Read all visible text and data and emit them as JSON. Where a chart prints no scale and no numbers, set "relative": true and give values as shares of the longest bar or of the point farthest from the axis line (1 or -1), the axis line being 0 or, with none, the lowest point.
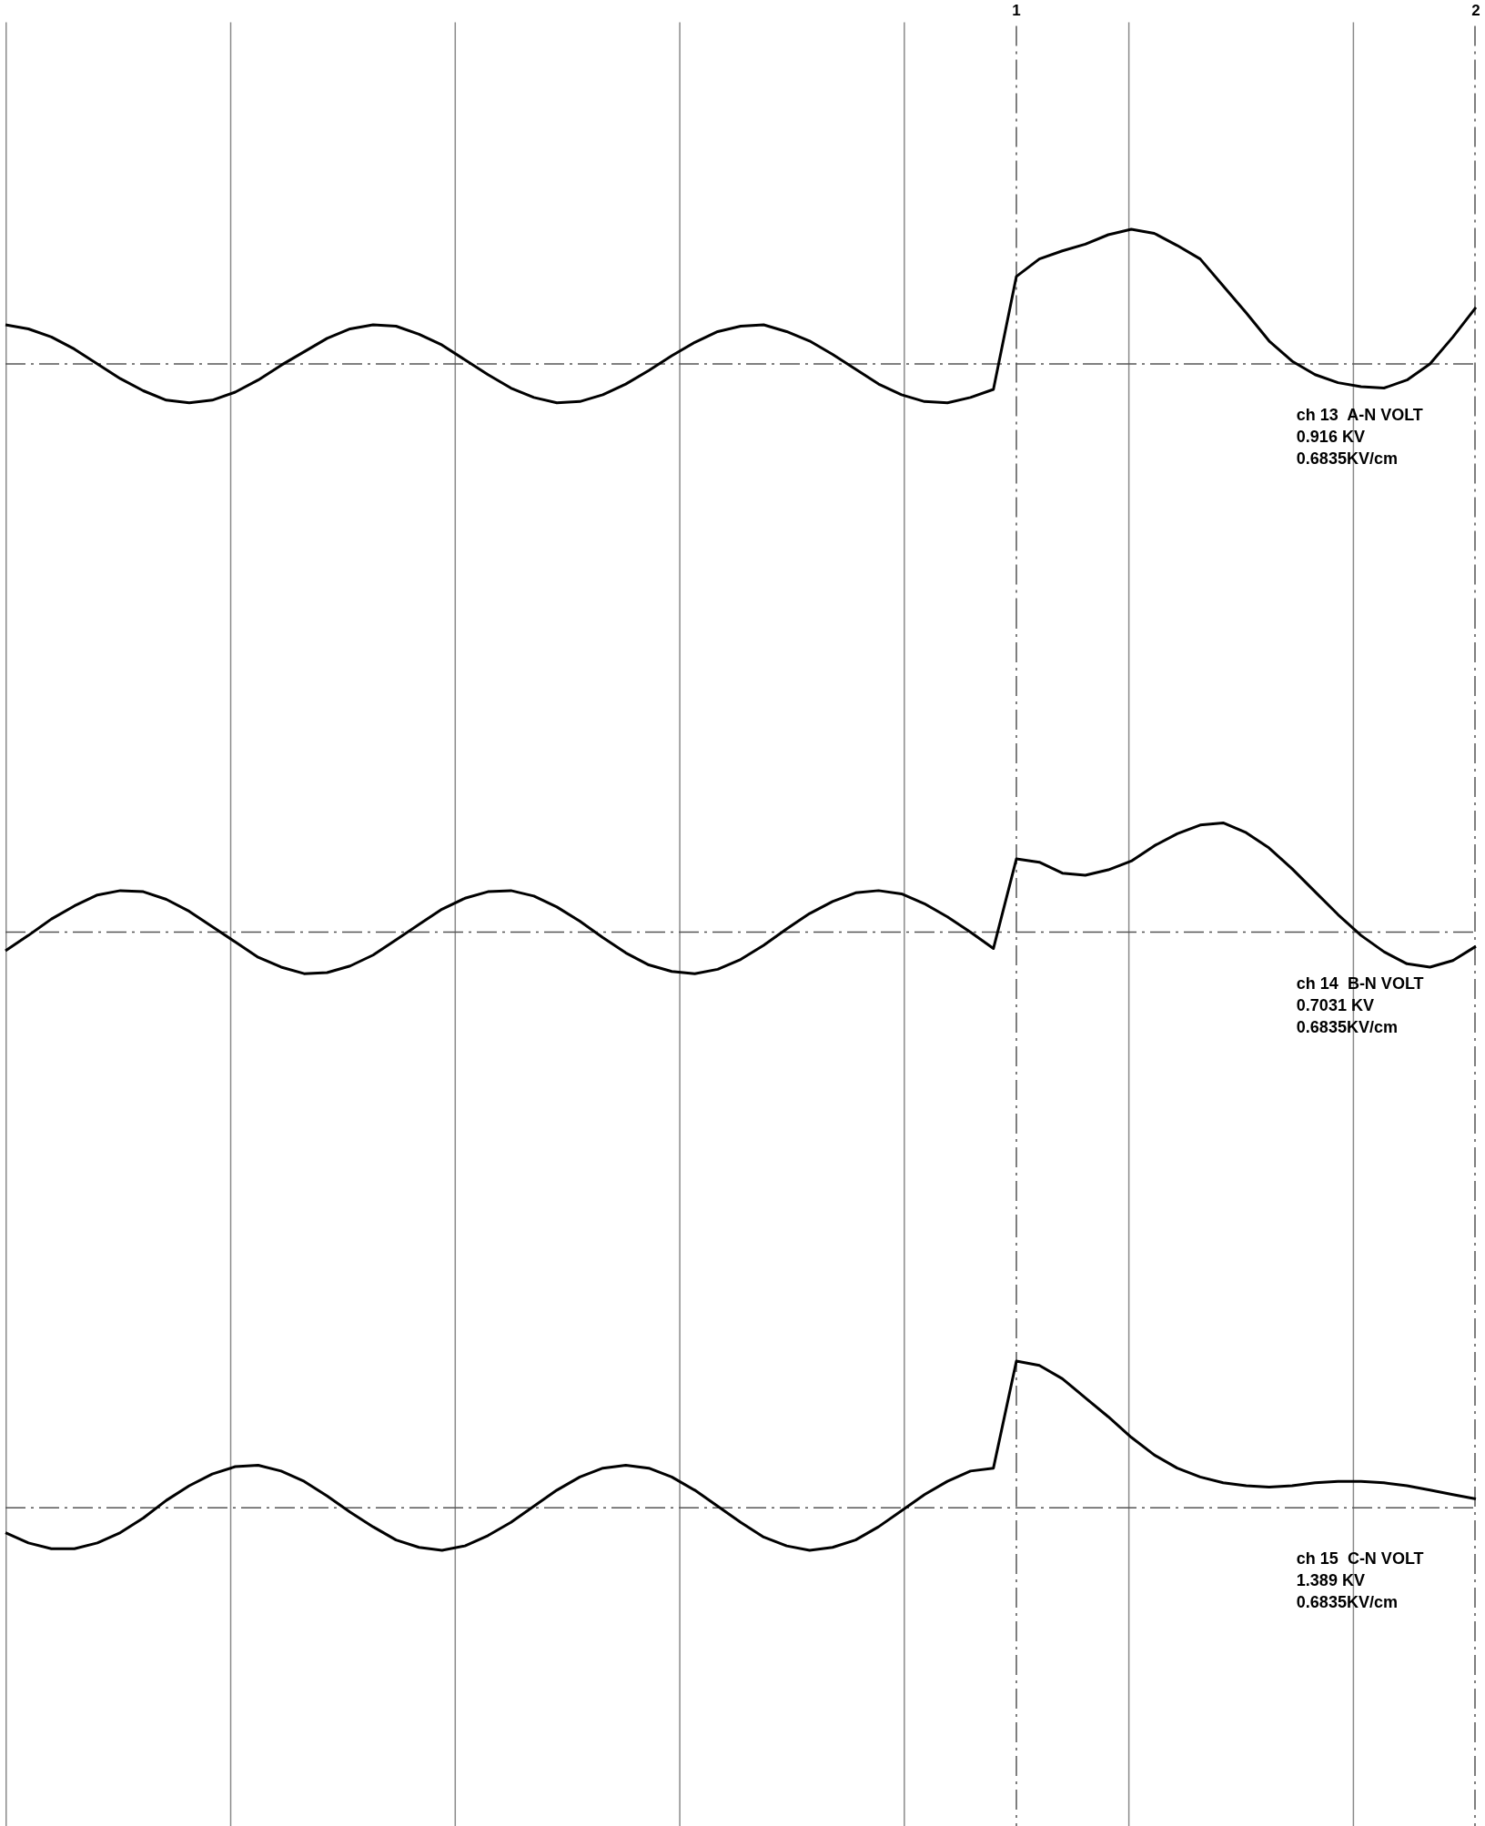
{
  "chart_data": [
    {
      "type": "line",
      "relative": true,
      "color": "#000000",
      "marker": "none",
      "line_style": "solid",
      "grid": "x",
      "tick_labels": "x",
      "categories": [
        null,
        null,
        null,
        null,
        null,
        null,
        null,
        null,
        null,
        null,
        null,
        null,
        null,
        null,
        null,
        null,
        null,
        null,
        null,
        null,
        null,
        null,
        null,
        null,
        null,
        null,
        null,
        null,
        null,
        null,
        null,
        null,
        null,
        null,
        null,
        null,
        null,
        null,
        null,
        null,
        null,
        null,
        null,
        null,
        "1",
        null,
        null,
        null,
        null,
        null,
        null,
        null,
        null,
        null,
        null,
        null,
        null,
        null,
        null,
        null,
        null,
        null,
        null,
        null,
        "2"
      ],
      "values": [
        0.29,
        0.26,
        0.2,
        0.11,
        0.0,
        -0.11,
        -0.2,
        -0.27,
        -0.29,
        -0.27,
        -0.21,
        -0.12,
        -0.01,
        0.09,
        0.19,
        0.26,
        0.29,
        0.28,
        0.22,
        0.14,
        0.03,
        -0.08,
        -0.18,
        -0.25,
        -0.29,
        -0.28,
        -0.23,
        -0.15,
        -0.05,
        0.06,
        0.16,
        0.24,
        0.28,
        0.29,
        0.24,
        0.17,
        0.07,
        -0.04,
        -0.15,
        -0.23,
        -0.28,
        -0.29,
        -0.25,
        -0.19,
        0.65,
        0.78,
        0.84,
        0.89,
        0.96,
        1.0,
        0.97,
        0.88,
        0.78,
        0.58,
        0.38,
        0.17,
        0.02,
        -0.08,
        -0.14,
        -0.17,
        -0.18,
        -0.12,
        0.0,
        0.2,
        0.42
      ],
      "ref_lines": [
        {
          "axis": "y",
          "value": 0,
          "line_style": "dashed",
          "color": "#555555"
        },
        {
          "axis": "x",
          "value": "1",
          "line_style": "dashed",
          "color": "#555555"
        },
        {
          "axis": "x",
          "value": "2",
          "line_style": "dashed",
          "color": "#555555"
        }
      ],
      "annotations": [
        "ch 13  A-N VOLT",
        "0.916 KV",
        "0.6835KV/cm"
      ]
    },
    {
      "type": "line",
      "relative": true,
      "color": "#000000",
      "marker": "none",
      "line_style": "solid",
      "grid": "x",
      "tick_labels": false,
      "categories": [
        null,
        null,
        null,
        null,
        null,
        null,
        null,
        null,
        null,
        null,
        null,
        null,
        null,
        null,
        null,
        null,
        null,
        null,
        null,
        null,
        null,
        null,
        null,
        null,
        null,
        null,
        null,
        null,
        null,
        null,
        null,
        null,
        null,
        null,
        null,
        null,
        null,
        null,
        null,
        null,
        null,
        null,
        null,
        null,
        "1",
        null,
        null,
        null,
        null,
        null,
        null,
        null,
        null,
        null,
        null,
        null,
        null,
        null,
        null,
        null,
        null,
        null,
        null,
        null,
        "2"
      ],
      "values": [
        -0.17,
        -0.03,
        0.12,
        0.24,
        0.34,
        0.38,
        0.37,
        0.3,
        0.19,
        0.05,
        -0.09,
        -0.23,
        -0.32,
        -0.38,
        -0.37,
        -0.31,
        -0.21,
        -0.07,
        0.07,
        0.21,
        0.31,
        0.37,
        0.38,
        0.33,
        0.23,
        0.1,
        -0.05,
        -0.19,
        -0.3,
        -0.36,
        -0.38,
        -0.34,
        -0.25,
        -0.12,
        0.03,
        0.17,
        0.28,
        0.36,
        0.38,
        0.35,
        0.26,
        0.14,
        0.0,
        -0.15,
        0.67,
        0.64,
        0.54,
        0.52,
        0.57,
        0.65,
        0.79,
        0.9,
        0.98,
        1.0,
        0.91,
        0.77,
        0.58,
        0.37,
        0.16,
        -0.03,
        -0.18,
        -0.29,
        -0.32,
        -0.26,
        -0.13
      ],
      "ref_lines": [
        {
          "axis": "y",
          "value": 0,
          "line_style": "dashed",
          "color": "#555555"
        },
        {
          "axis": "x",
          "value": "1",
          "line_style": "dashed",
          "color": "#555555"
        },
        {
          "axis": "x",
          "value": "2",
          "line_style": "dashed",
          "color": "#555555"
        }
      ],
      "annotations": [
        "ch 14  B-N VOLT",
        "0.7031 KV",
        "0.6835KV/cm"
      ]
    },
    {
      "type": "line",
      "relative": true,
      "color": "#000000",
      "marker": "none",
      "line_style": "solid",
      "grid": "x",
      "tick_labels": false,
      "categories": [
        null,
        null,
        null,
        null,
        null,
        null,
        null,
        null,
        null,
        null,
        null,
        null,
        null,
        null,
        null,
        null,
        null,
        null,
        null,
        null,
        null,
        null,
        null,
        null,
        null,
        null,
        null,
        null,
        null,
        null,
        null,
        null,
        null,
        null,
        null,
        null,
        null,
        null,
        null,
        null,
        null,
        null,
        null,
        null,
        "1",
        null,
        null,
        null,
        null,
        null,
        null,
        null,
        null,
        null,
        null,
        null,
        null,
        null,
        null,
        null,
        null,
        null,
        null,
        null,
        "2"
      ],
      "values": [
        -0.17,
        -0.24,
        -0.28,
        -0.28,
        -0.24,
        -0.17,
        -0.07,
        0.05,
        0.15,
        0.23,
        0.28,
        0.29,
        0.25,
        0.18,
        0.08,
        -0.03,
        -0.13,
        -0.22,
        -0.27,
        -0.29,
        -0.26,
        -0.19,
        -0.1,
        0.01,
        0.12,
        0.21,
        0.27,
        0.29,
        0.27,
        0.21,
        0.12,
        0.01,
        -0.1,
        -0.2,
        -0.26,
        -0.29,
        -0.27,
        -0.22,
        -0.13,
        -0.02,
        0.09,
        0.18,
        0.25,
        0.27,
        1.0,
        0.97,
        0.88,
        0.75,
        0.62,
        0.48,
        0.36,
        0.27,
        0.21,
        0.17,
        0.15,
        0.14,
        0.15,
        0.17,
        0.18,
        0.18,
        0.17,
        0.15,
        0.12,
        0.09,
        0.06
      ],
      "ref_lines": [
        {
          "axis": "y",
          "value": 0,
          "line_style": "dashed",
          "color": "#555555"
        },
        {
          "axis": "x",
          "value": "1",
          "line_style": "dashed",
          "color": "#555555"
        },
        {
          "axis": "x",
          "value": "2",
          "line_style": "dashed",
          "color": "#555555"
        }
      ],
      "annotations": [
        "ch 15  C-N VOLT",
        "1.389 KV",
        "0.6835KV/cm"
      ]
    }
  ]
}
